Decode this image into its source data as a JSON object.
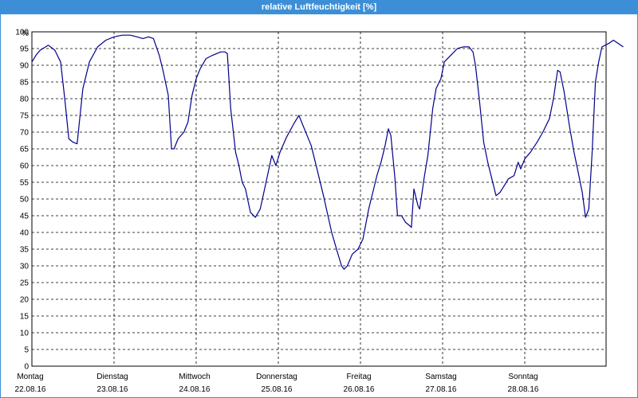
{
  "window": {
    "title": "relative Luftfeuchtigkeit [%]"
  },
  "chart_data": {
    "type": "line",
    "title": "relative Luftfeuchtigkeit [%]",
    "ylabel": "%",
    "ylim": [
      0,
      100
    ],
    "yticks": [
      0,
      5,
      10,
      15,
      20,
      25,
      30,
      35,
      40,
      45,
      50,
      55,
      60,
      65,
      70,
      75,
      80,
      85,
      90,
      95,
      100
    ],
    "grid": true,
    "line_color": "#00008b",
    "x_categories": [
      {
        "day": "Montag",
        "date": "22.08.16"
      },
      {
        "day": "Dienstag",
        "date": "23.08.16"
      },
      {
        "day": "Mittwoch",
        "date": "24.08.16"
      },
      {
        "day": "Donnerstag",
        "date": "25.08.16"
      },
      {
        "day": "Freitag",
        "date": "26.08.16"
      },
      {
        "day": "Samstag",
        "date": "27.08.16"
      },
      {
        "day": "Sonntag",
        "date": "28.08.16"
      }
    ],
    "series": [
      {
        "points": [
          [
            0.0,
            91
          ],
          [
            0.05,
            93
          ],
          [
            0.1,
            94.5
          ],
          [
            0.2,
            96
          ],
          [
            0.28,
            94.5
          ],
          [
            0.35,
            91
          ],
          [
            0.4,
            80
          ],
          [
            0.45,
            68
          ],
          [
            0.5,
            67
          ],
          [
            0.55,
            66.5
          ],
          [
            0.62,
            83
          ],
          [
            0.7,
            91
          ],
          [
            0.8,
            95.5
          ],
          [
            0.9,
            97.5
          ],
          [
            1.0,
            98.5
          ],
          [
            1.1,
            99
          ],
          [
            1.2,
            99
          ],
          [
            1.28,
            98.5
          ],
          [
            1.35,
            98
          ],
          [
            1.42,
            98.5
          ],
          [
            1.48,
            98
          ],
          [
            1.55,
            93
          ],
          [
            1.6,
            88
          ],
          [
            1.66,
            81
          ],
          [
            1.7,
            65
          ],
          [
            1.73,
            65
          ],
          [
            1.78,
            68
          ],
          [
            1.85,
            70
          ],
          [
            1.9,
            73
          ],
          [
            1.95,
            81
          ],
          [
            2.0,
            86
          ],
          [
            2.05,
            89
          ],
          [
            2.12,
            92
          ],
          [
            2.2,
            93
          ],
          [
            2.3,
            94
          ],
          [
            2.35,
            94
          ],
          [
            2.38,
            93.5
          ],
          [
            2.42,
            77
          ],
          [
            2.48,
            64
          ],
          [
            2.52,
            60
          ],
          [
            2.56,
            55
          ],
          [
            2.6,
            53
          ],
          [
            2.66,
            46
          ],
          [
            2.72,
            44.5
          ],
          [
            2.78,
            47
          ],
          [
            2.85,
            55
          ],
          [
            2.92,
            63
          ],
          [
            2.97,
            60
          ],
          [
            3.02,
            64
          ],
          [
            3.1,
            68.5
          ],
          [
            3.2,
            73
          ],
          [
            3.25,
            75
          ],
          [
            3.3,
            72
          ],
          [
            3.4,
            66
          ],
          [
            3.45,
            61
          ],
          [
            3.55,
            51
          ],
          [
            3.65,
            40
          ],
          [
            3.72,
            34
          ],
          [
            3.77,
            30
          ],
          [
            3.8,
            29
          ],
          [
            3.84,
            30
          ],
          [
            3.9,
            33.5
          ],
          [
            3.97,
            35
          ],
          [
            4.03,
            38
          ],
          [
            4.1,
            47
          ],
          [
            4.15,
            52
          ],
          [
            4.2,
            57
          ],
          [
            4.25,
            61
          ],
          [
            4.3,
            66
          ],
          [
            4.34,
            71
          ],
          [
            4.37,
            69
          ],
          [
            4.42,
            56
          ],
          [
            4.45,
            45
          ],
          [
            4.5,
            45
          ],
          [
            4.55,
            43
          ],
          [
            4.6,
            42
          ],
          [
            4.62,
            41.5
          ],
          [
            4.65,
            53
          ],
          [
            4.7,
            48
          ],
          [
            4.72,
            47
          ],
          [
            4.78,
            57
          ],
          [
            4.82,
            63
          ],
          [
            4.88,
            77
          ],
          [
            4.92,
            83
          ],
          [
            4.98,
            86
          ],
          [
            5.02,
            91
          ],
          [
            5.1,
            93
          ],
          [
            5.18,
            95
          ],
          [
            5.25,
            95.5
          ],
          [
            5.32,
            95.5
          ],
          [
            5.37,
            94
          ],
          [
            5.4,
            90
          ],
          [
            5.45,
            79
          ],
          [
            5.5,
            67
          ],
          [
            5.55,
            61
          ],
          [
            5.6,
            56
          ],
          [
            5.65,
            51
          ],
          [
            5.7,
            52
          ],
          [
            5.75,
            54
          ],
          [
            5.8,
            56
          ],
          [
            5.87,
            57
          ],
          [
            5.92,
            61
          ],
          [
            5.95,
            59
          ],
          [
            6.0,
            62
          ],
          [
            6.07,
            64
          ],
          [
            6.15,
            67
          ],
          [
            6.22,
            70
          ],
          [
            6.3,
            74
          ],
          [
            6.35,
            80
          ],
          [
            6.4,
            88.5
          ],
          [
            6.43,
            88
          ],
          [
            6.48,
            82
          ],
          [
            6.55,
            71
          ],
          [
            6.6,
            64
          ],
          [
            6.65,
            58
          ],
          [
            6.7,
            52
          ],
          [
            6.74,
            44.5
          ],
          [
            6.78,
            47
          ],
          [
            6.82,
            64
          ],
          [
            6.86,
            85
          ],
          [
            6.9,
            91
          ],
          [
            6.94,
            95.5
          ],
          [
            6.98,
            96
          ],
          [
            7.02,
            96.5
          ],
          [
            7.08,
            97.5
          ],
          [
            7.14,
            96.5
          ],
          [
            7.2,
            95.5
          ]
        ]
      }
    ]
  }
}
